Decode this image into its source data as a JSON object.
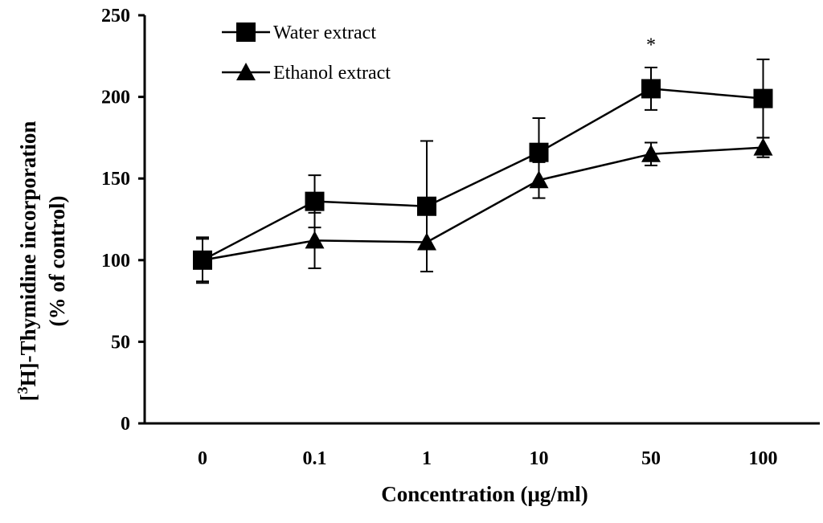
{
  "chart_data": {
    "type": "line",
    "title": "",
    "xlabel": "Concentration (μg/ml)",
    "ylabel": {
      "prefix": "[",
      "sup": "3",
      "main": "H]-Thymidine incorporation",
      "line2": "(% of control)"
    },
    "categories": [
      "0",
      "0.1",
      "1",
      "10",
      "50",
      "100"
    ],
    "ylim": [
      0,
      250
    ],
    "yticks": [
      0,
      50,
      100,
      150,
      200,
      250
    ],
    "grid": false,
    "legend_position": "top-left",
    "series": [
      {
        "name": "Water extract",
        "marker": "square",
        "values": [
          100,
          136,
          133,
          166,
          205,
          199
        ],
        "errors": [
          14,
          16,
          40,
          21,
          13,
          24
        ],
        "color": "#000000"
      },
      {
        "name": "Ethanol extract",
        "marker": "triangle",
        "values": [
          100,
          112,
          111,
          149,
          165,
          169
        ],
        "errors": [
          13,
          17,
          18,
          11,
          7,
          6
        ],
        "color": "#000000"
      }
    ],
    "annotations": [
      {
        "text": "*",
        "category": "50",
        "y": 232
      }
    ]
  }
}
